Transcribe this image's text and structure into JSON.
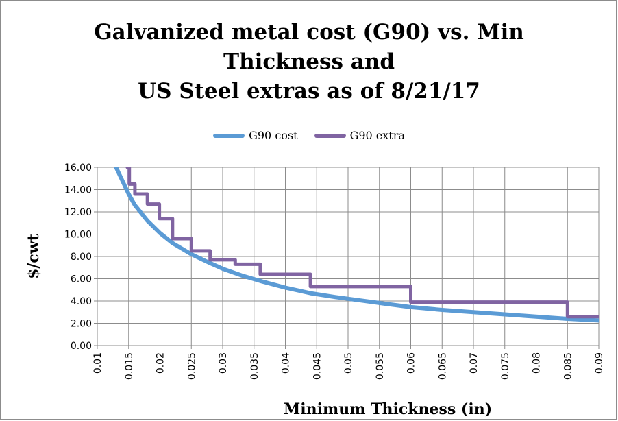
{
  "chart_data": {
    "type": "line",
    "title_lines": [
      "Galvanized metal cost (G90) vs. Min",
      "Thickness and",
      "US Steel extras as of 8/21/17"
    ],
    "xlabel": "Minimum Thickness (in)",
    "ylabel": "$/cwt",
    "xlim": [
      0.01,
      0.09
    ],
    "ylim": [
      0,
      16
    ],
    "x_ticks": [
      "0.01",
      "0.015",
      "0.02",
      "0.025",
      "0.03",
      "0.035",
      "0.04",
      "0.045",
      "0.05",
      "0.055",
      "0.06",
      "0.065",
      "0.07",
      "0.075",
      "0.08",
      "0.085",
      "0.09"
    ],
    "y_ticks": [
      "0.00",
      "2.00",
      "4.00",
      "6.00",
      "8.00",
      "10.00",
      "12.00",
      "14.00",
      "16.00"
    ],
    "legend": [
      "G90 cost",
      "G90 extra"
    ],
    "series": [
      {
        "name": "G90 cost",
        "color": "#5b9bd5",
        "x": [
          0.013,
          0.014,
          0.015,
          0.016,
          0.018,
          0.02,
          0.022,
          0.025,
          0.028,
          0.03,
          0.033,
          0.036,
          0.04,
          0.044,
          0.048,
          0.052,
          0.056,
          0.06,
          0.065,
          0.07,
          0.075,
          0.08,
          0.085,
          0.09
        ],
        "y": [
          16.0,
          14.8,
          13.6,
          12.6,
          11.2,
          10.1,
          9.2,
          8.2,
          7.4,
          6.9,
          6.3,
          5.8,
          5.2,
          4.7,
          4.35,
          4.05,
          3.75,
          3.45,
          3.2,
          3.0,
          2.8,
          2.6,
          2.4,
          2.25
        ]
      },
      {
        "name": "G90 extra",
        "color": "#8064a2",
        "x": [
          0.0148,
          0.0151,
          0.0151,
          0.016,
          0.016,
          0.018,
          0.018,
          0.0199,
          0.0199,
          0.022,
          0.022,
          0.025,
          0.025,
          0.028,
          0.028,
          0.032,
          0.032,
          0.036,
          0.036,
          0.044,
          0.044,
          0.06,
          0.06,
          0.085,
          0.085,
          0.09
        ],
        "y": [
          16.0,
          16.0,
          14.5,
          14.5,
          13.6,
          13.6,
          12.7,
          12.7,
          11.4,
          11.4,
          9.6,
          9.6,
          8.5,
          8.5,
          7.7,
          7.7,
          7.3,
          7.3,
          6.4,
          6.4,
          5.3,
          5.3,
          3.9,
          3.9,
          2.6,
          2.6
        ]
      }
    ]
  }
}
